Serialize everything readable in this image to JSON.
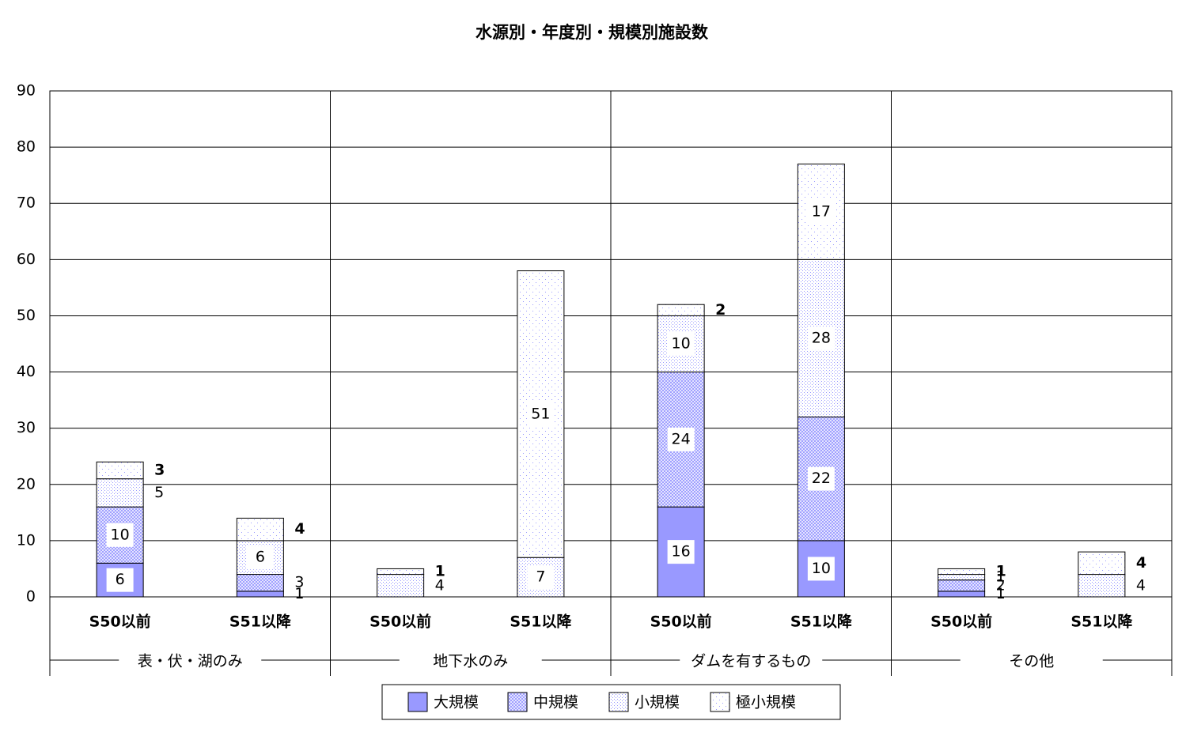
{
  "chart_data": {
    "type": "bar",
    "stacked": true,
    "title": "水源別・年度別・規模別施設数",
    "categories": [
      "S50以前",
      "S51以降",
      "S50以前",
      "S51以降",
      "S50以前",
      "S51以降",
      "S50以前",
      "S51以降"
    ],
    "groups": [
      "表・伏・湖のみ",
      "地下水のみ",
      "ダムを有するもの",
      "その他"
    ],
    "series": [
      {
        "name": "大規模",
        "color": "#9999ff",
        "values": [
          6,
          1,
          null,
          null,
          16,
          10,
          1,
          null
        ]
      },
      {
        "name": "中規模",
        "color": "#9999ff",
        "values": [
          10,
          3,
          null,
          null,
          24,
          22,
          2,
          null
        ]
      },
      {
        "name": "小規模",
        "color": "#9999ff",
        "values": [
          5,
          6,
          4,
          7,
          10,
          28,
          1,
          4
        ]
      },
      {
        "name": "極小規模",
        "color": "#9999ff",
        "values": [
          3,
          4,
          1,
          51,
          2,
          17,
          1,
          4
        ]
      }
    ],
    "ylim": [
      0,
      90
    ],
    "yticks": [
      0,
      10,
      20,
      30,
      40,
      50,
      60,
      70,
      80,
      90
    ],
    "grid": true,
    "legend": "bottom"
  }
}
